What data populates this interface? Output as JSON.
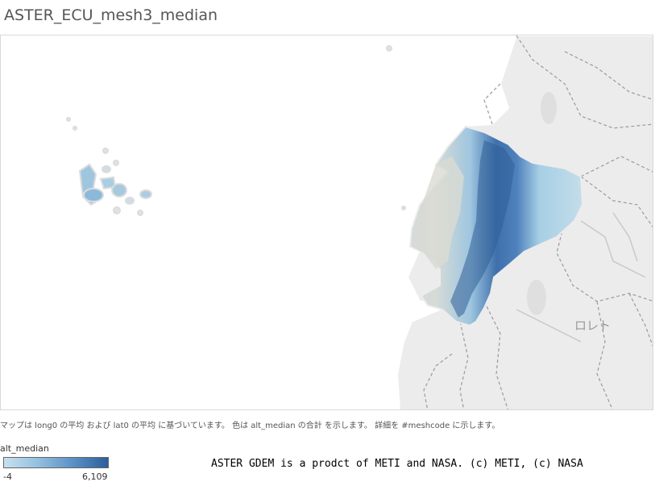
{
  "title": "ASTER_ECU_mesh3_median",
  "map": {
    "place_label": "ロレト",
    "caption": "マップは long0 の平均 および lat0 の平均 に基づいています。 色は alt_median の合計 を示します。 詳細を #meshcode に示します。"
  },
  "legend": {
    "title": "alt_median",
    "min": "-4",
    "max": "6,109",
    "colors": [
      "#c8e0ef",
      "#98c2e0",
      "#5d93c7",
      "#2b5e9c"
    ]
  },
  "attribution": "ASTER GDEM is a prodct of METI and NASA. (c) METI, (c) NASA"
}
